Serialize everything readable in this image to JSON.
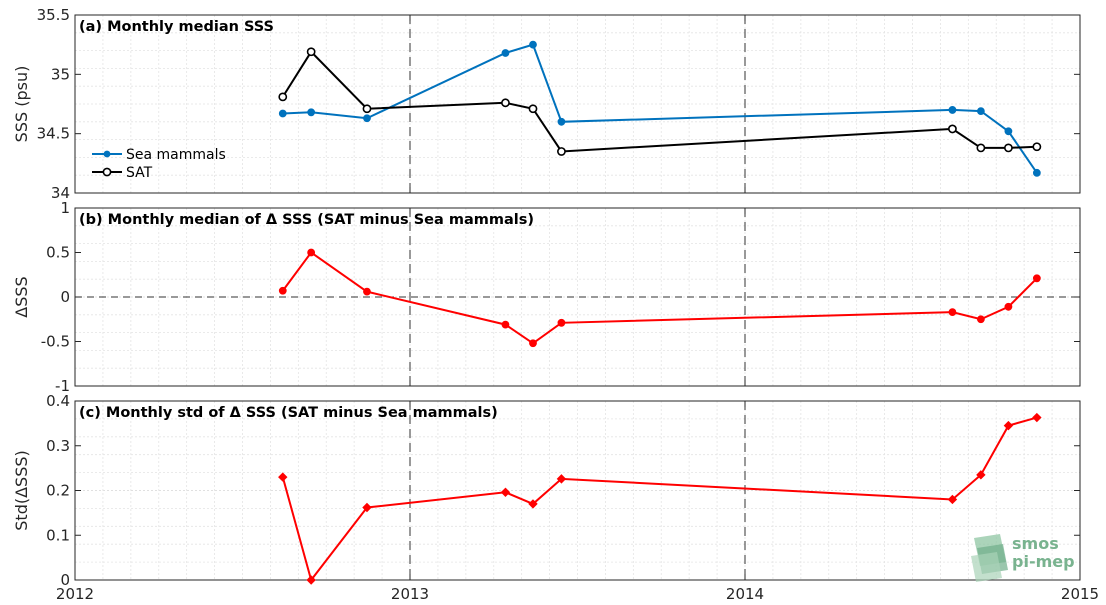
{
  "chart_data": [
    {
      "type": "line",
      "title": "(a) Monthly median SSS",
      "ylabel": "SSS (psu)",
      "ylim": [
        34,
        35.5
      ],
      "yticks": [
        "34",
        "34.5",
        "35",
        "35.5"
      ],
      "xlim": [
        "2012-01-01",
        "2015-01-01"
      ],
      "grid": true,
      "legend": "left",
      "vlines": [
        "2013-01-01",
        "2014-01-01"
      ],
      "series": [
        {
          "name": "Sea mammals",
          "color": "#0072bd",
          "marker": "filled-circle",
          "x": [
            "2012-08-15",
            "2012-09-15",
            "2012-11-15",
            "2013-04-15",
            "2013-05-15",
            "2013-06-15",
            "2014-08-15",
            "2014-09-15",
            "2014-10-15",
            "2014-11-15"
          ],
          "y": [
            34.67,
            34.68,
            34.63,
            35.18,
            35.25,
            34.6,
            34.7,
            34.69,
            34.52,
            34.17
          ]
        },
        {
          "name": "SAT",
          "color": "#000000",
          "marker": "open-circle",
          "x": [
            "2012-08-15",
            "2012-09-15",
            "2012-11-15",
            "2013-04-15",
            "2013-05-15",
            "2013-06-15",
            "2014-08-15",
            "2014-09-15",
            "2014-10-15",
            "2014-11-15"
          ],
          "y": [
            34.81,
            35.19,
            34.71,
            34.76,
            34.71,
            34.35,
            34.54,
            34.38,
            34.38,
            34.39
          ]
        }
      ]
    },
    {
      "type": "line",
      "title": "(b) Monthly median of Δ SSS (SAT minus Sea mammals)",
      "ylabel": "ΔSSS",
      "ylim": [
        -1,
        1
      ],
      "yticks": [
        "-1",
        "-0.5",
        "0",
        "0.5",
        "1"
      ],
      "xlim": [
        "2012-01-01",
        "2015-01-01"
      ],
      "grid": true,
      "zero_line": true,
      "vlines": [
        "2013-01-01",
        "2014-01-01"
      ],
      "series": [
        {
          "color": "#ff0000",
          "marker": "filled-circle",
          "x": [
            "2012-08-15",
            "2012-09-15",
            "2012-11-15",
            "2013-04-15",
            "2013-05-15",
            "2013-06-15",
            "2014-08-15",
            "2014-09-15",
            "2014-10-15",
            "2014-11-15"
          ],
          "y": [
            0.07,
            0.5,
            0.06,
            -0.31,
            -0.52,
            -0.29,
            -0.17,
            -0.25,
            -0.11,
            0.21
          ]
        }
      ]
    },
    {
      "type": "line",
      "title": "(c) Monthly std of Δ SSS (SAT minus Sea mammals)",
      "ylabel": "Std(ΔSSS)",
      "ylim": [
        0,
        0.4
      ],
      "yticks": [
        "0",
        "0.1",
        "0.2",
        "0.3",
        "0.4"
      ],
      "xlim": [
        "2012-01-01",
        "2015-01-01"
      ],
      "xticks": [
        "2012",
        "2013",
        "2014",
        "2015"
      ],
      "grid": true,
      "vlines": [
        "2013-01-01",
        "2014-01-01"
      ],
      "series": [
        {
          "color": "#ff0000",
          "marker": "diamond",
          "x": [
            "2012-08-15",
            "2012-09-15",
            "2012-11-15",
            "2013-04-15",
            "2013-05-15",
            "2013-06-15",
            "2014-08-15",
            "2014-09-15",
            "2014-10-15",
            "2014-11-15"
          ],
          "y": [
            0.23,
            0.0,
            0.162,
            0.196,
            0.17,
            0.226,
            0.18,
            0.235,
            0.345,
            0.363
          ]
        }
      ]
    }
  ],
  "logo": {
    "line1": "smos",
    "line2": "pi-mep",
    "color": "#79b38f"
  }
}
